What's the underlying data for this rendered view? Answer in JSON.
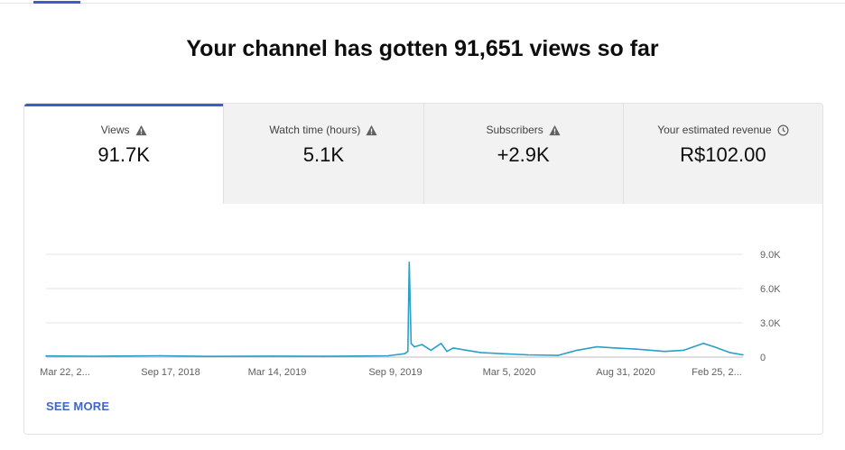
{
  "title": "Your channel has gotten 91,651 views so far",
  "metrics": [
    {
      "label": "Views",
      "value": "91.7K",
      "icon": "warning-icon",
      "active": true
    },
    {
      "label": "Watch time (hours)",
      "value": "5.1K",
      "icon": "warning-icon",
      "active": false
    },
    {
      "label": "Subscribers",
      "value": "+2.9K",
      "icon": "warning-icon",
      "active": false
    },
    {
      "label": "Your estimated revenue",
      "value": "R$102.00",
      "icon": "clock-icon",
      "active": false
    }
  ],
  "see_more": "SEE MORE",
  "colors": {
    "accent": "#3e5cc5",
    "line": "#2aa0c8",
    "link": "#3e66c9"
  },
  "chart_data": {
    "type": "line",
    "x_tick_labels": [
      "Mar 22, 2...",
      "Sep 17, 2018",
      "Mar 14, 2019",
      "Sep 9, 2019",
      "Mar 5, 2020",
      "Aug 31, 2020",
      "Feb 25, 2..."
    ],
    "y_tick_labels": [
      "9.0K",
      "6.0K",
      "3.0K",
      "0"
    ],
    "ylim": [
      0,
      9000
    ],
    "grid": true,
    "series": [
      {
        "x": [
          "2018-03-22",
          "2018-06-01",
          "2018-09-17",
          "2018-12-01",
          "2019-03-14",
          "2019-06-01",
          "2019-09-09",
          "2019-10-05",
          "2019-10-10",
          "2019-10-12",
          "2019-10-15",
          "2019-10-20",
          "2019-11-01",
          "2019-11-15",
          "2019-12-01",
          "2019-12-10",
          "2019-12-20",
          "2020-01-10",
          "2020-02-01",
          "2020-03-05",
          "2020-04-15",
          "2020-06-01",
          "2020-07-01",
          "2020-08-01",
          "2020-08-31",
          "2020-10-01",
          "2020-11-15",
          "2020-12-15",
          "2021-01-15",
          "2021-02-01",
          "2021-02-25",
          "2021-03-18"
        ],
        "values": [
          100,
          80,
          120,
          60,
          90,
          70,
          120,
          300,
          500,
          8300,
          1200,
          900,
          1100,
          600,
          1200,
          500,
          800,
          600,
          400,
          300,
          200,
          150,
          600,
          900,
          800,
          700,
          500,
          600,
          1200,
          900,
          400,
          200
        ]
      }
    ]
  }
}
